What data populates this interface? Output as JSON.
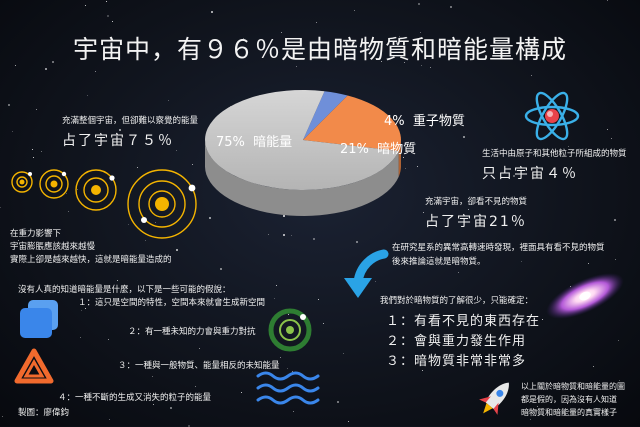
{
  "title": "宇宙中，有９６％是由暗物質和暗能量構成",
  "chart_data": {
    "type": "pie",
    "categories": [
      "暗能量",
      "暗物質",
      "重子物質"
    ],
    "values": [
      75,
      21,
      4
    ],
    "labels": [
      "75%",
      "21%",
      "4%"
    ],
    "colors": [
      "#c4c4c4",
      "#f28a4a",
      "#6f8fd9"
    ]
  },
  "dark_energy": {
    "line1": "充滿整個宇宙，但卻難以察覺的能量",
    "line2": "占了宇宙７５％"
  },
  "baryon": {
    "line1": "生活中由原子和其他粒子所組成的物質",
    "line2": "只占宇宙４％"
  },
  "dark_matter": {
    "line1": "充滿宇宙，卻看不見的物質",
    "line2": "占了宇宙21％"
  },
  "gravity": {
    "line1": "在重力影響下",
    "line2": "宇宙膨脹應該越來越慢",
    "line3": "實際上卻是越來越快，這就是暗能量造成的"
  },
  "hypotheses": {
    "intro": "沒有人真的知道暗能量是什麼，以下是一些可能的假說：",
    "items": [
      "１：這只是空間的特性，空間本來就會生成新空間",
      "２：有一種未知的力會與重力對抗",
      "３：一種與一般物質、能量相反的未知能量",
      "４：一種不斷的生成又消失的粒子的能量"
    ]
  },
  "galaxy_study": {
    "line1": "在研究星系的異常高轉速時發現，裡面具有看不見的物質",
    "line2": "後來推論這就是暗物質。"
  },
  "dark_matter_facts": {
    "intro": "我們對於暗物質的了解很少，只能確定：",
    "items": [
      "１：有看不見的東西存在",
      "２：會與重力發生作用",
      "３：暗物質非常非常多"
    ]
  },
  "note": {
    "line1": "以上關於暗物質和暗能量的圖",
    "line2": "都是假的，因為沒有人知道",
    "line3": "暗物質和暗能量的真實樣子"
  },
  "credit": "製圖：廖偉鈞",
  "icons": [
    "atom-icon",
    "solar-system-icon",
    "galaxy-icon",
    "rocket-icon",
    "curved-arrow-icon",
    "square-stack-icon",
    "triangle-icon",
    "orbit-ring-icon",
    "wave-icon"
  ]
}
